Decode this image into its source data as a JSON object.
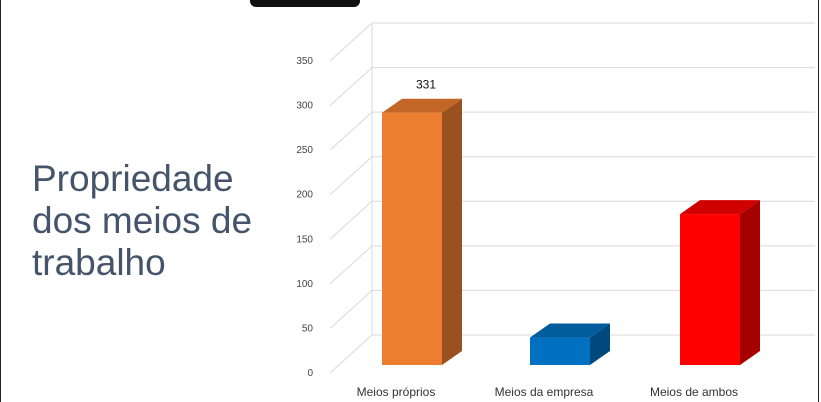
{
  "slide": {
    "title": "Propriedade\ndos meios de\ntrabalho"
  },
  "chart_data": {
    "type": "bar",
    "style": "3d-column",
    "categories": [
      "Meios próprios",
      "Meios da empresa",
      "Meios de ambos"
    ],
    "values": [
      331,
      36,
      198
    ],
    "data_labels": [
      "331",
      "",
      ""
    ],
    "colors": [
      "#ed7d31",
      "#0070c0",
      "#ff0000"
    ],
    "ylim": [
      0,
      350
    ],
    "yticks": [
      0,
      50,
      100,
      150,
      200,
      250,
      300,
      350
    ],
    "grid": true,
    "legend": "none"
  }
}
